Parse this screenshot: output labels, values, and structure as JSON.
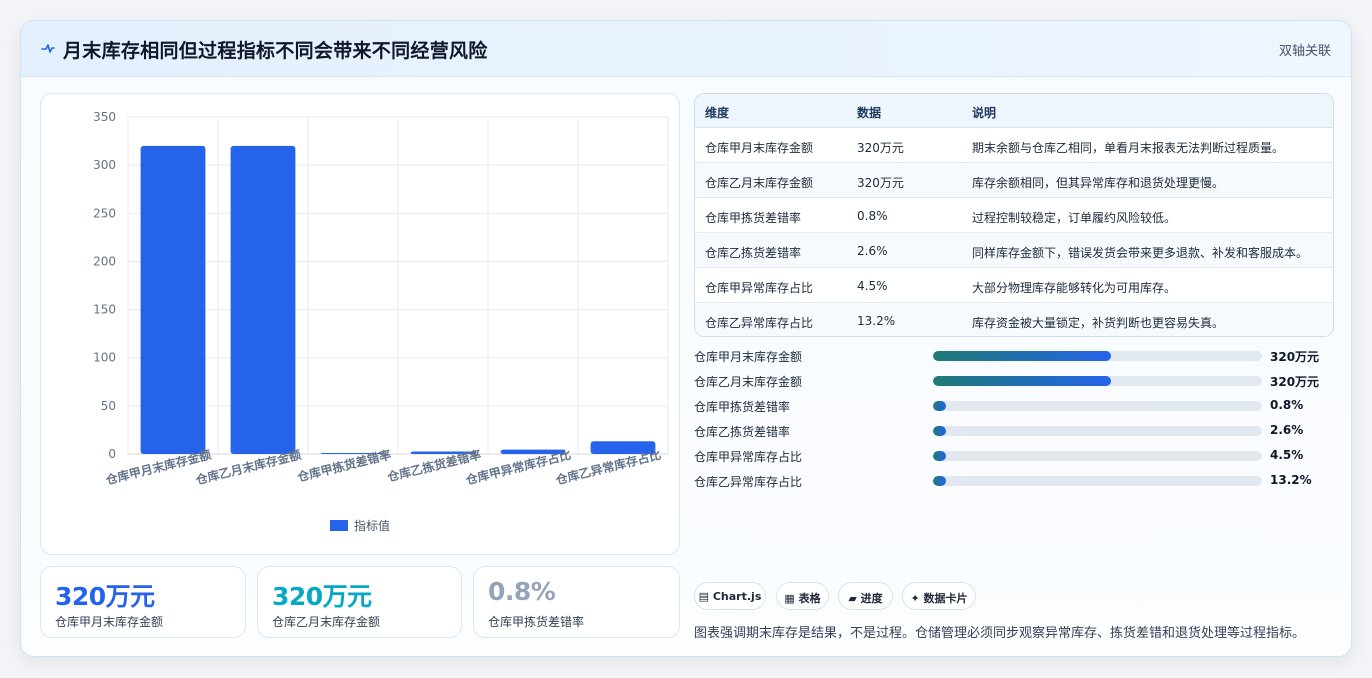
{
  "header": {
    "title": "月末库存相同但过程指标不同会带来不同经营风险",
    "right_label": "双轴关联"
  },
  "chart_data": {
    "type": "bar",
    "categories": [
      "仓库甲月末库存金额",
      "仓库乙月末库存金额",
      "仓库甲拣货差错率",
      "仓库乙拣货差错率",
      "仓库甲异常库存占比",
      "仓库乙异常库存占比"
    ],
    "series": [
      {
        "name": "指标值",
        "values": [
          320,
          320,
          0.8,
          2.6,
          4.5,
          13.2
        ]
      }
    ],
    "ylim": [
      0,
      350
    ],
    "yticks": [
      0,
      50,
      100,
      150,
      200,
      250,
      300,
      350
    ],
    "grid": true,
    "legend": "bottom",
    "bar_color": "#2563eb"
  },
  "stats": [
    {
      "value": "320万元",
      "label": "仓库甲月末库存金额",
      "color": "#2563eb"
    },
    {
      "value": "320万元",
      "label": "仓库乙月末库存金额",
      "color": "#06a9c4"
    },
    {
      "value": "0.8%",
      "label": "仓库甲拣货差错率",
      "color": "#94a3b8"
    }
  ],
  "table": {
    "headers": [
      "维度",
      "数据",
      "说明"
    ],
    "rows": [
      [
        "仓库甲月末库存金额",
        "320万元",
        "期末余额与仓库乙相同，单看月末报表无法判断过程质量。"
      ],
      [
        "仓库乙月末库存金额",
        "320万元",
        "库存余额相同，但其异常库存和退货处理更慢。"
      ],
      [
        "仓库甲拣货差错率",
        "0.8%",
        "过程控制较稳定，订单履约风险较低。"
      ],
      [
        "仓库乙拣货差错率",
        "2.6%",
        "同样库存金额下，错误发货会带来更多退款、补发和客服成本。"
      ],
      [
        "仓库甲异常库存占比",
        "4.5%",
        "大部分物理库存能够转化为可用库存。"
      ],
      [
        "仓库乙异常库存占比",
        "13.2%",
        "库存资金被大量锁定，补货判断也更容易失真。"
      ]
    ]
  },
  "progress": [
    {
      "label": "仓库甲月末库存金额",
      "value": "320万元",
      "fraction": 0.54
    },
    {
      "label": "仓库乙月末库存金额",
      "value": "320万元",
      "fraction": 0.54
    },
    {
      "label": "仓库甲拣货差错率",
      "value": "0.8%",
      "fraction": 0.04
    },
    {
      "label": "仓库乙拣货差错率",
      "value": "2.6%",
      "fraction": 0.04
    },
    {
      "label": "仓库甲异常库存占比",
      "value": "4.5%",
      "fraction": 0.04
    },
    {
      "label": "仓库乙异常库存占比",
      "value": "13.2%",
      "fraction": 0.04
    }
  ],
  "chips": [
    {
      "icon": "▤",
      "label": "Chart.js"
    },
    {
      "icon": "▦",
      "label": "表格"
    },
    {
      "icon": "▰",
      "label": "进度"
    },
    {
      "icon": "✦",
      "label": "数据卡片"
    }
  ],
  "note": "图表强调期末库存是结果，不是过程。仓储管理必须同步观察异常库存、拣货差错和退货处理等过程指标。"
}
